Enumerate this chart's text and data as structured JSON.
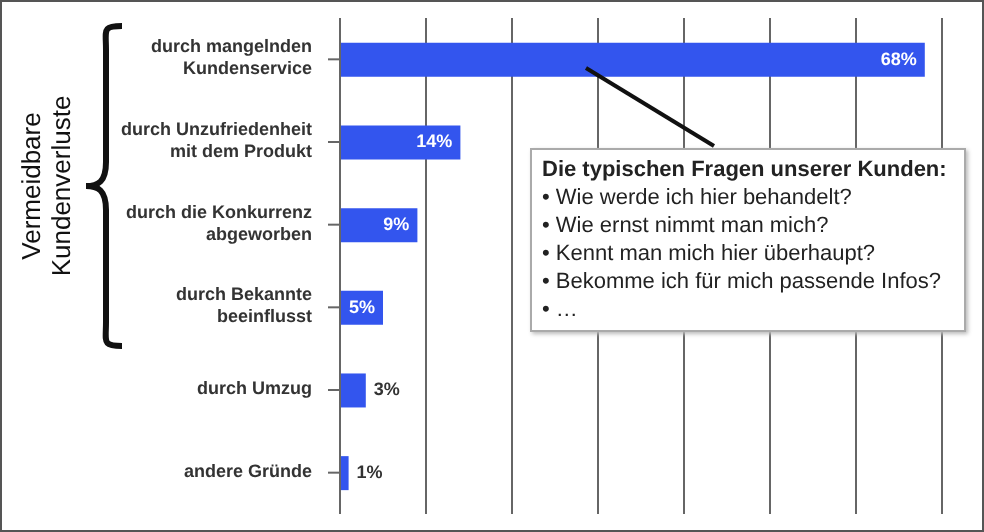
{
  "chart_data": {
    "type": "bar",
    "orientation": "horizontal",
    "categories": [
      "durch mangelnden Kundenservice",
      "durch Unzufriedenheit mit dem Produkt",
      "durch die Konkurrenz abgeworben",
      "durch Bekannte beeinflusst",
      "durch Umzug",
      "andere Gründe"
    ],
    "values": [
      68,
      14,
      9,
      5,
      3,
      1
    ],
    "value_labels": [
      "68%",
      "14%",
      "9%",
      "5%",
      "3%",
      "1%"
    ],
    "color": "#3355ee",
    "xlim": [
      0,
      70
    ],
    "xticks": [
      {
        "value": 0,
        "label": null
      },
      {
        "value": 10,
        "label": null
      },
      {
        "value": 20,
        "label": null
      },
      {
        "value": 30,
        "label": null
      },
      {
        "value": 40,
        "label": null
      },
      {
        "value": 50,
        "label": null
      },
      {
        "value": 60,
        "label": null
      },
      {
        "value": 70,
        "label": null
      }
    ],
    "tick_labels": "y",
    "grid": "x",
    "annotations": [
      "Vermeidbare Kundenverluste",
      "Die typischen Fragen unserer Kunden:",
      "• Wie werde ich hier behandelt?",
      "• Wie ernst nimmt man mich?",
      "• Kennt man mich hier überhaupt?",
      "• Bekomme ich für mich passende Infos?",
      "• …"
    ]
  }
}
